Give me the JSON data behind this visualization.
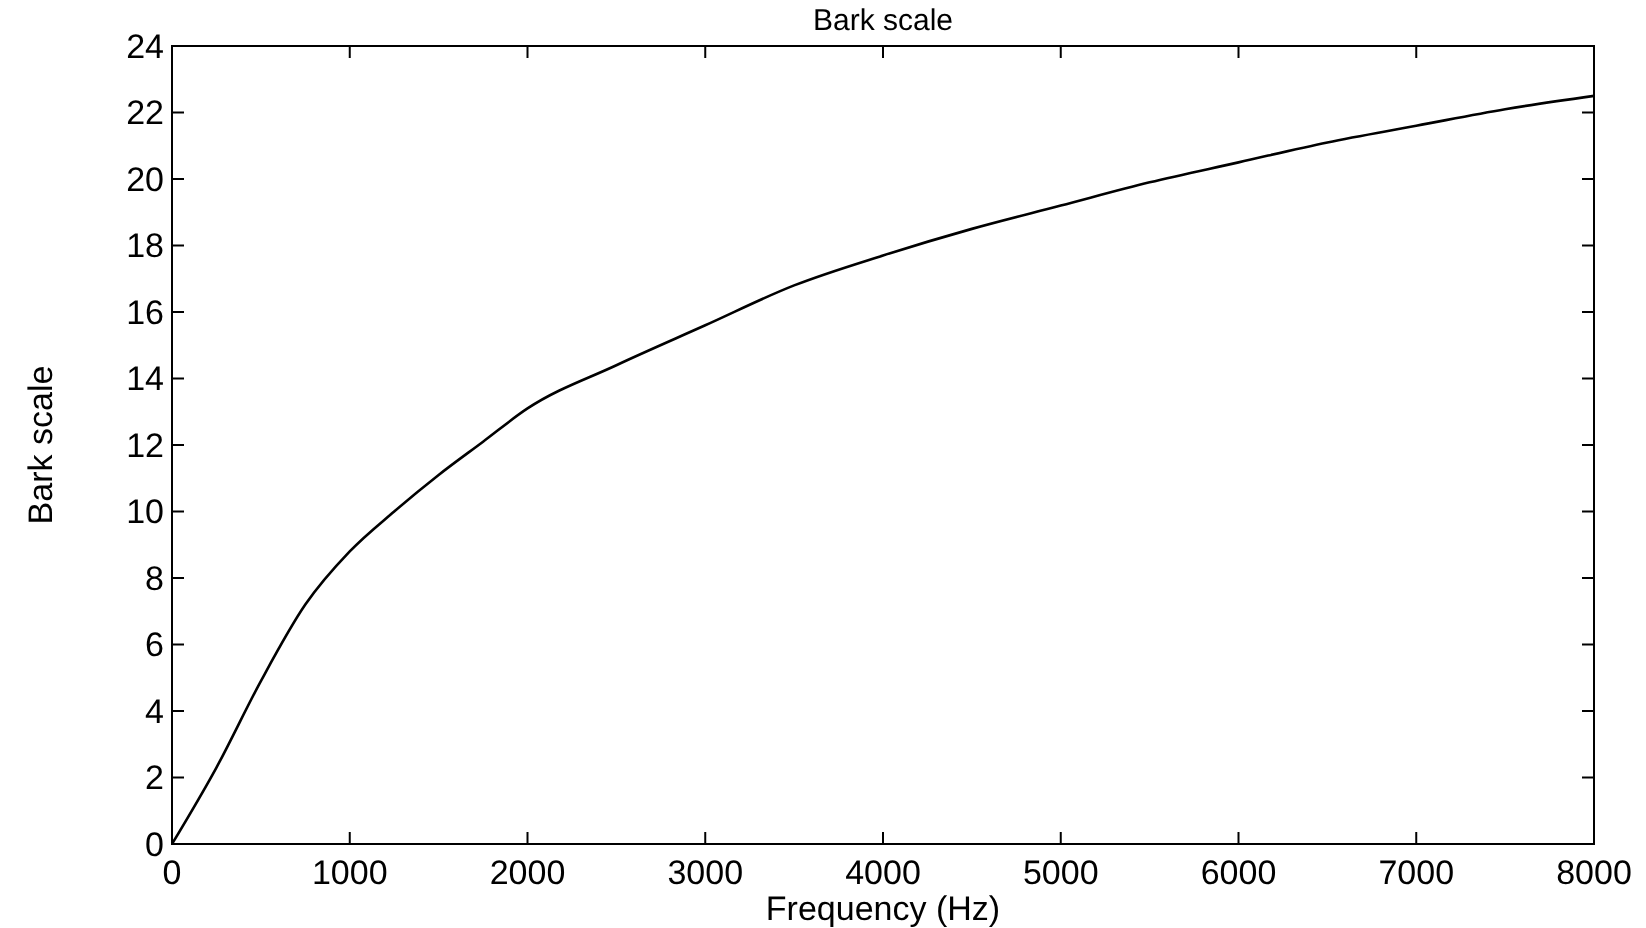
{
  "chart_data": {
    "type": "line",
    "title": "Bark scale",
    "xlabel": "Frequency (Hz)",
    "ylabel": "Bark scale",
    "x": [
      0,
      250,
      500,
      750,
      1000,
      1250,
      1500,
      1750,
      2000,
      2500,
      3000,
      3500,
      4000,
      4500,
      5000,
      5500,
      6000,
      6500,
      7000,
      7500,
      8000
    ],
    "series": [
      {
        "color": "#000000",
        "values": [
          0,
          2.3,
          4.9,
          7.2,
          8.8,
          10.0,
          11.1,
          12.1,
          13.1,
          14.4,
          15.6,
          16.8,
          17.7,
          18.5,
          19.2,
          19.9,
          20.5,
          21.1,
          21.6,
          22.1,
          22.5
        ]
      }
    ],
    "xlim": [
      0,
      8000
    ],
    "xticks": [
      0,
      1000,
      2000,
      3000,
      4000,
      5000,
      6000,
      7000,
      8000
    ],
    "ylim": [
      0,
      24
    ],
    "yticks": [
      0,
      2,
      4,
      6,
      8,
      10,
      12,
      14,
      16,
      18,
      20,
      22,
      24
    ],
    "grid": false,
    "marker": "none",
    "line_style": "solid"
  }
}
